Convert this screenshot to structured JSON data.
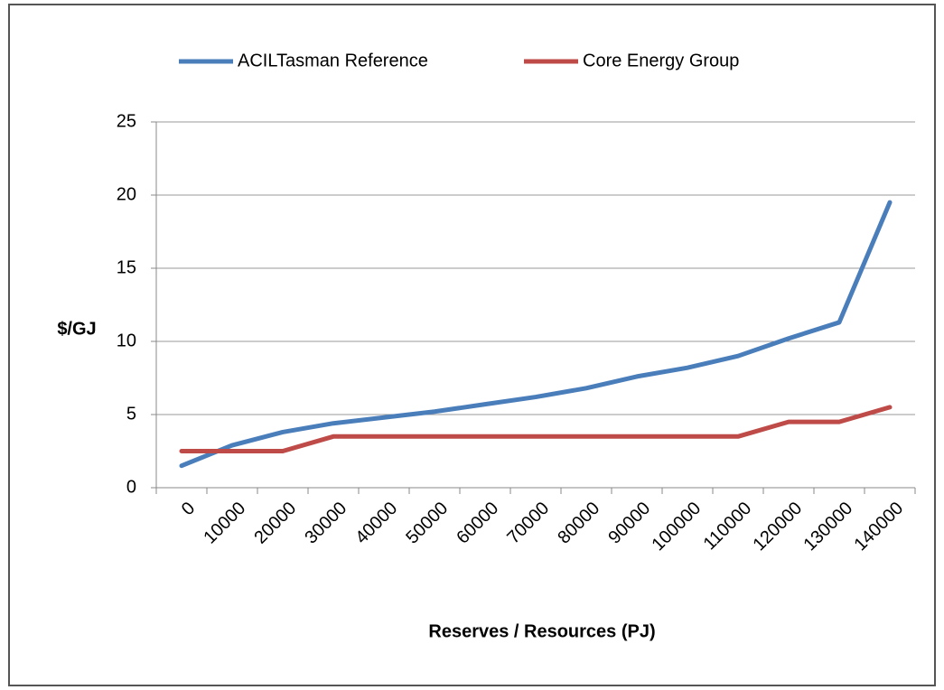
{
  "chart_data": {
    "type": "line",
    "xlabel": "Reserves / Resources (PJ)",
    "ylabel": "$/GJ",
    "categories": [
      "0",
      "10000",
      "20000",
      "30000",
      "40000",
      "50000",
      "60000",
      "70000",
      "80000",
      "90000",
      "100000",
      "110000",
      "120000",
      "130000",
      "140000"
    ],
    "series": [
      {
        "name": "ACILTasman Reference",
        "color": "#4a7ebb",
        "values": [
          1.5,
          2.9,
          3.8,
          4.4,
          4.8,
          5.2,
          5.7,
          6.2,
          6.8,
          7.6,
          8.2,
          9.0,
          10.2,
          11.3,
          19.5
        ]
      },
      {
        "name": "Core Energy Group",
        "color": "#be4b48",
        "values": [
          2.5,
          2.5,
          2.5,
          3.5,
          3.5,
          3.5,
          3.5,
          3.5,
          3.5,
          3.5,
          3.5,
          3.5,
          4.5,
          4.5,
          5.5
        ]
      }
    ],
    "ylim": [
      0,
      25
    ],
    "yticks": [
      0,
      5,
      10,
      15,
      20,
      25
    ],
    "grid": true,
    "legend": "top"
  }
}
